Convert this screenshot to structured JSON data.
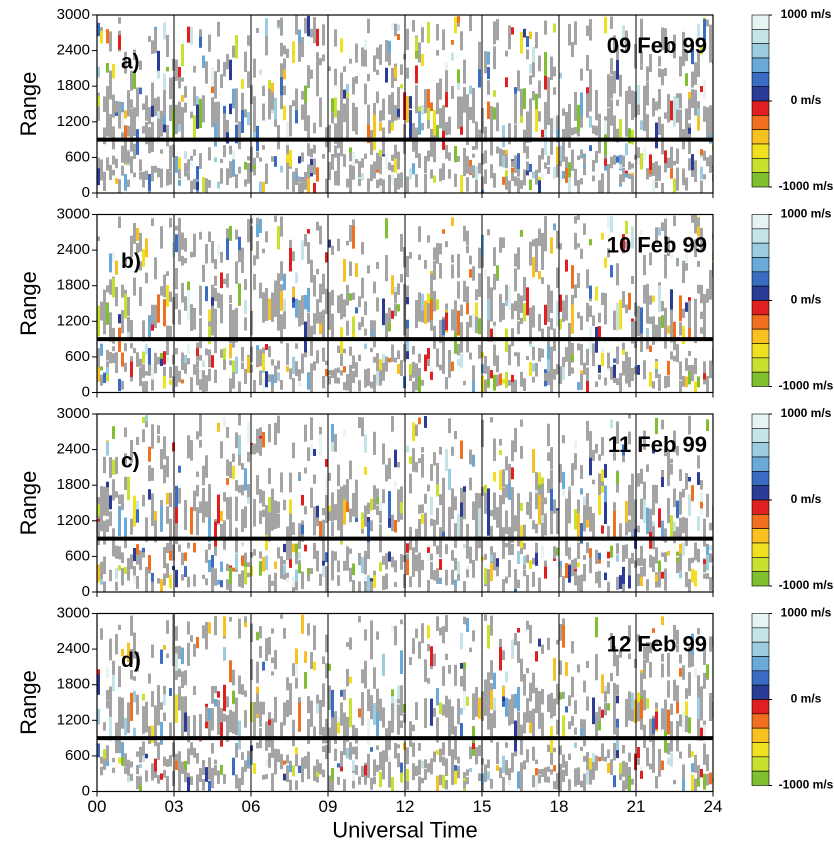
{
  "chart_data": [
    {
      "type": "range-time",
      "panel_label": "a)",
      "annotation": "09 Feb 99",
      "ylabel": "Range",
      "xlim": [
        0,
        24
      ],
      "xticks": [
        0,
        3,
        6,
        9,
        12,
        15,
        18,
        21,
        24
      ],
      "ylim": [
        0,
        3000
      ],
      "yticks": [
        0,
        600,
        1200,
        1800,
        2400,
        3000
      ],
      "hline": 900,
      "grid": true,
      "colorbar": {
        "lim": [
          -1000,
          1000
        ],
        "ticks": [
          {
            "value": 1000,
            "label": "1000 m/s"
          },
          {
            "value": 0,
            "label": "0 m/s"
          },
          {
            "value": -1000,
            "label": "-1000 m/s"
          }
        ],
        "colors": [
          "#e8f4f4",
          "#c4e4e8",
          "#9ccce0",
          "#6aaad8",
          "#3a6cc4",
          "#2a3c98",
          "#e02020",
          "#f07020",
          "#f8c020",
          "#f0e020",
          "#c8e030",
          "#80c030"
        ]
      }
    },
    {
      "type": "range-time",
      "panel_label": "b)",
      "annotation": "10 Feb 99",
      "ylabel": "Range",
      "xlim": [
        0,
        24
      ],
      "xticks": [
        0,
        3,
        6,
        9,
        12,
        15,
        18,
        21,
        24
      ],
      "ylim": [
        0,
        3000
      ],
      "yticks": [
        0,
        600,
        1200,
        1800,
        2400,
        3000
      ],
      "hline": 900,
      "grid": true,
      "colorbar": {
        "lim": [
          -1000,
          1000
        ],
        "ticks": [
          {
            "value": 1000,
            "label": "1000 m/s"
          },
          {
            "value": 0,
            "label": "0 m/s"
          },
          {
            "value": -1000,
            "label": "-1000 m/s"
          }
        ],
        "colors": [
          "#e8f4f4",
          "#c4e4e8",
          "#9ccce0",
          "#6aaad8",
          "#3a6cc4",
          "#2a3c98",
          "#e02020",
          "#f07020",
          "#f8c020",
          "#f0e020",
          "#c8e030",
          "#80c030"
        ]
      }
    },
    {
      "type": "range-time",
      "panel_label": "c)",
      "annotation": "11 Feb 99",
      "ylabel": "Range",
      "xlim": [
        0,
        24
      ],
      "xticks": [
        0,
        3,
        6,
        9,
        12,
        15,
        18,
        21,
        24
      ],
      "ylim": [
        0,
        3000
      ],
      "yticks": [
        0,
        600,
        1200,
        1800,
        2400,
        3000
      ],
      "hline": 900,
      "grid": true,
      "colorbar": {
        "lim": [
          -1000,
          1000
        ],
        "ticks": [
          {
            "value": 1000,
            "label": "1000 m/s"
          },
          {
            "value": 0,
            "label": "0 m/s"
          },
          {
            "value": -1000,
            "label": "-1000 m/s"
          }
        ],
        "colors": [
          "#e8f4f4",
          "#c4e4e8",
          "#9ccce0",
          "#6aaad8",
          "#3a6cc4",
          "#2a3c98",
          "#e02020",
          "#f07020",
          "#f8c020",
          "#f0e020",
          "#c8e030",
          "#80c030"
        ]
      }
    },
    {
      "type": "range-time",
      "panel_label": "d)",
      "annotation": "12 Feb 99",
      "ylabel": "Range",
      "xlabel": "Universal Time",
      "xlim": [
        0,
        24
      ],
      "xticks": [
        {
          "value": 0,
          "label": "00"
        },
        {
          "value": 3,
          "label": "03"
        },
        {
          "value": 6,
          "label": "06"
        },
        {
          "value": 9,
          "label": "09"
        },
        {
          "value": 12,
          "label": "12"
        },
        {
          "value": 15,
          "label": "15"
        },
        {
          "value": 18,
          "label": "18"
        },
        {
          "value": 21,
          "label": "21"
        },
        {
          "value": 24,
          "label": "24"
        }
      ],
      "ylim": [
        0,
        3000
      ],
      "yticks": [
        0,
        600,
        1200,
        1800,
        2400,
        3000
      ],
      "hline": 900,
      "grid": true,
      "colorbar": {
        "lim": [
          -1000,
          1000
        ],
        "ticks": [
          {
            "value": 1000,
            "label": "1000 m/s"
          },
          {
            "value": 0,
            "label": "0 m/s"
          },
          {
            "value": -1000,
            "label": "-1000 m/s"
          }
        ],
        "colors": [
          "#e8f4f4",
          "#c4e4e8",
          "#9ccce0",
          "#6aaad8",
          "#3a6cc4",
          "#2a3c98",
          "#e02020",
          "#f07020",
          "#f8c020",
          "#f0e020",
          "#c8e030",
          "#80c030"
        ]
      }
    }
  ]
}
